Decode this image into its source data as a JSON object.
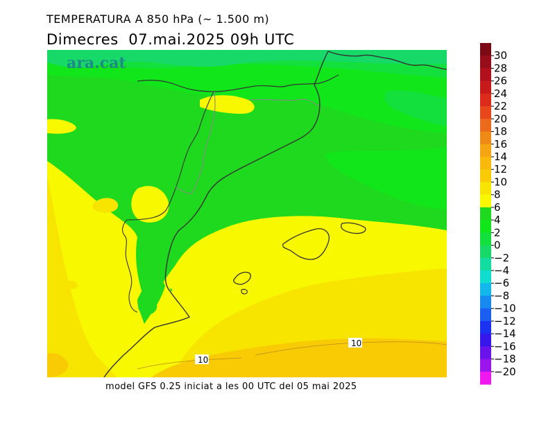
{
  "header": {
    "title": "TEMPERATURA A 850 hPa (~ 1.500 m)",
    "subtitle": "Dimecres  07.mai.2025 09h UTC"
  },
  "footer": {
    "credit": "model GFS 0.25 iniciat a les 00 UTC del 05 mai 2025"
  },
  "map": {
    "logo": "ara.cat",
    "contour_labels": [
      "10",
      "10"
    ]
  },
  "legend": {
    "ticks": [
      30,
      28,
      26,
      24,
      22,
      20,
      18,
      16,
      14,
      12,
      10,
      8,
      6,
      4,
      2,
      0,
      -2,
      -4,
      -6,
      -8,
      -10,
      -12,
      -14,
      -16,
      -18,
      -20
    ],
    "tick_labels": [
      "30",
      "28",
      "26",
      "24",
      "22",
      "20",
      "18",
      "16",
      "14",
      "12",
      "10",
      "8",
      "6",
      "4",
      "2",
      "0",
      "−2",
      "−4",
      "−6",
      "−8",
      "−10",
      "−12",
      "−14",
      "−16",
      "−18",
      "−20"
    ],
    "colors": [
      "#7a0b14",
      "#970d1a",
      "#b3101d",
      "#c81a1a",
      "#dc2b1a",
      "#e8461b",
      "#ec6a1b",
      "#f08a17",
      "#f5a512",
      "#f8b80c",
      "#f9cb05",
      "#f7e500",
      "#f8f800",
      "#1ed91e",
      "#10e61a",
      "#13e03d",
      "#16d968",
      "#13dca0",
      "#10dcd0",
      "#13b7ec",
      "#1789f0",
      "#1a5ff2",
      "#1b33f0",
      "#3716ec",
      "#6a12ec",
      "#9b14ec",
      "#ef18ef"
    ]
  }
}
